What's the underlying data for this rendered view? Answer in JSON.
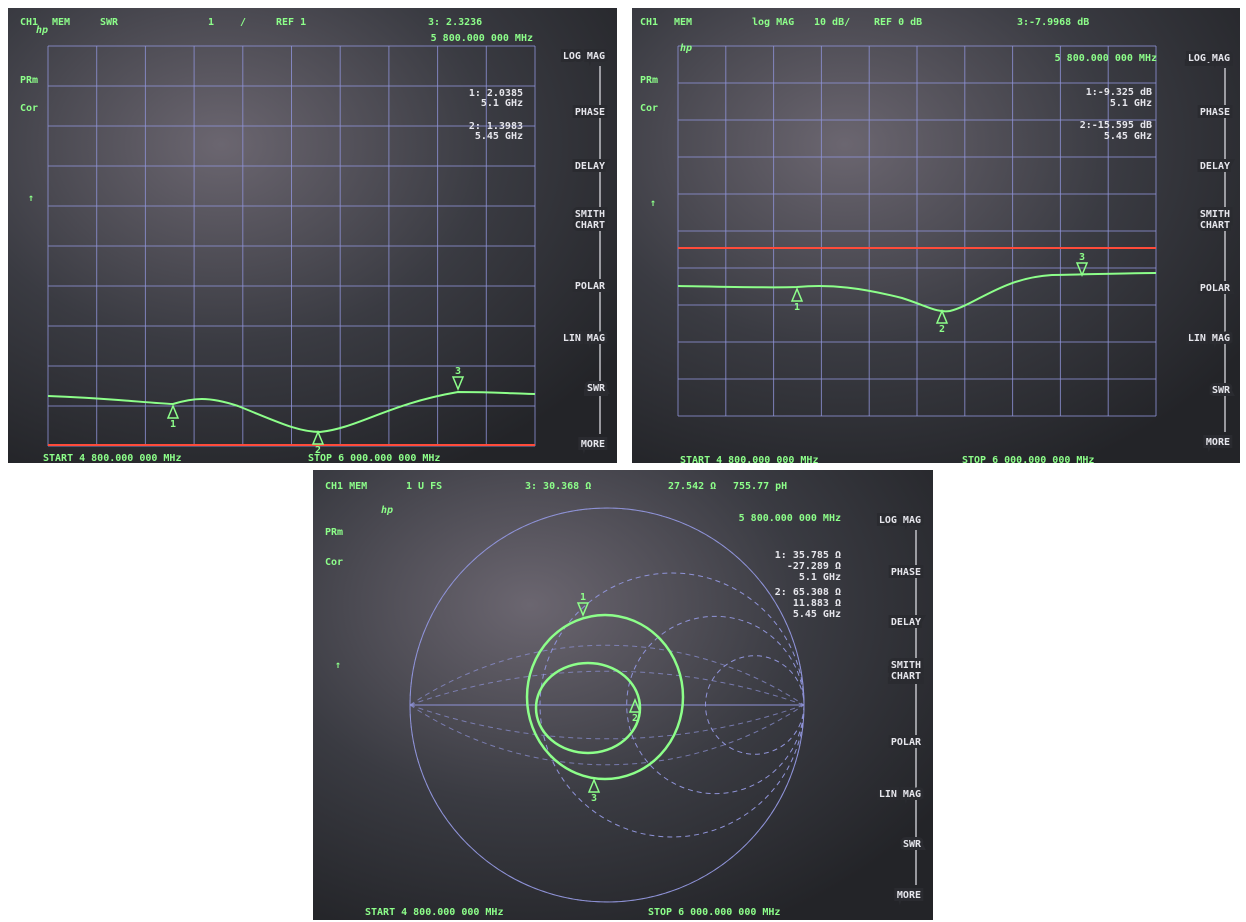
{
  "softkeys": [
    [
      "LOG MAG"
    ],
    [
      "PHASE"
    ],
    [
      "DELAY"
    ],
    [
      "SMITH",
      "CHART"
    ],
    [
      "POLAR"
    ],
    [
      "LIN MAG"
    ],
    [
      "SWR"
    ],
    [
      "MORE"
    ]
  ],
  "panels": [
    {
      "header": [
        "CH1",
        "MEM",
        "SWR",
        "1",
        "/",
        "REF 1"
      ],
      "readout": "3: 2.3236",
      "logo": "hp",
      "center": "5 800.000 000 MHz",
      "status": [
        "PRm",
        "Cor"
      ],
      "arrow": "↑",
      "markers": [
        [
          "1: 2.0385",
          "5.1 GHz"
        ],
        [
          "2: 1.3983",
          "5.45 GHz"
        ]
      ],
      "trace_markers": [
        "1",
        "2",
        "3"
      ],
      "start": "START 4 800.000 000 MHz",
      "stop": "STOP 6 000.000 000 MHz",
      "active_softkey": 6
    },
    {
      "header": [
        "CH1",
        "MEM",
        "log MAG",
        "10 dB/",
        "REF 0 dB"
      ],
      "readout": "3:-7.9968 dB",
      "logo": "hp",
      "center": "5 800.000 000 MHz",
      "status": [
        "PRm",
        "Cor"
      ],
      "arrow": "↑",
      "markers": [
        [
          "1:-9.325 dB",
          "5.1 GHz"
        ],
        [
          "2:-15.595 dB",
          "5.45 GHz"
        ]
      ],
      "trace_markers": [
        "1",
        "2",
        "3"
      ],
      "start": "START 4 800.000 000 MHz",
      "stop": "STOP 6 000.000 000 MHz",
      "active_softkey": 0
    },
    {
      "header": [
        "CH1 MEM",
        "1 U FS",
        "3: 30.368 Ω",
        "27.542 Ω",
        "755.77 pH"
      ],
      "readout": null,
      "logo": "hp",
      "center": "5 800.000 000 MHz",
      "status": [
        "PRm",
        "Cor"
      ],
      "arrow": "↑",
      "markers": [
        [
          "1: 35.785 Ω",
          "-27.289 Ω",
          "5.1 GHz"
        ],
        [
          "2: 65.308 Ω",
          "11.883 Ω",
          "5.45 GHz"
        ]
      ],
      "trace_markers": [
        "1",
        "2",
        "3"
      ],
      "start": "START 4 800.000 000 MHz",
      "stop": "STOP 6 000.000 000 MHz",
      "active_softkey": 3
    }
  ]
}
